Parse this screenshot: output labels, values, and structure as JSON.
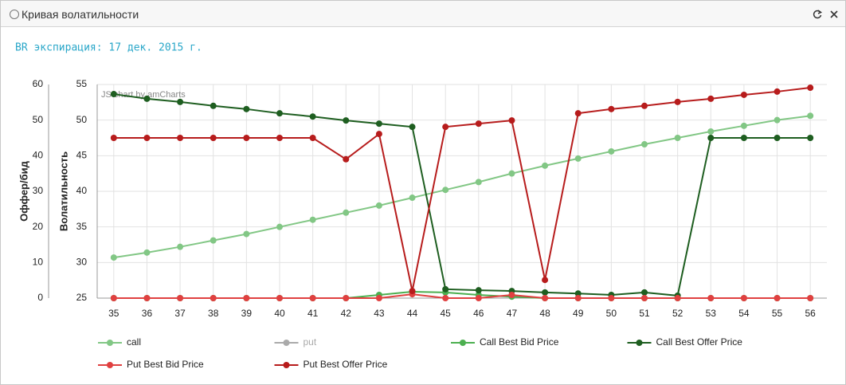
{
  "window_title": "Кривая волатильности",
  "chart_data": {
    "type": "line",
    "subtitle": "BR экспирация: 17 дек. 2015 г.",
    "watermark": "JS chart by amCharts",
    "y_label": "Оффер/бид",
    "y2_label": "Волатильность",
    "categories": [
      "35",
      "36",
      "37",
      "38",
      "39",
      "40",
      "41",
      "42",
      "43",
      "44",
      "45",
      "46",
      "47",
      "48",
      "49",
      "50",
      "51",
      "52",
      "53",
      "54",
      "55",
      "56"
    ],
    "ylim": [
      0,
      60
    ],
    "yticks": [
      0,
      10,
      20,
      30,
      40,
      50,
      60
    ],
    "y2lim": [
      25,
      55
    ],
    "y2ticks": [
      25,
      30,
      35,
      40,
      45,
      50,
      55
    ],
    "grid": true,
    "series": [
      {
        "name": "call",
        "color": "#82c785",
        "axis": "y2",
        "values": [
          30.7,
          31.4,
          32.2,
          33.1,
          34.0,
          35.0,
          36.0,
          37.0,
          38.0,
          39.1,
          40.2,
          41.3,
          42.5,
          43.6,
          44.6,
          45.6,
          46.6,
          47.5,
          48.4,
          49.2,
          50.0,
          50.6
        ]
      },
      {
        "name": "put",
        "color": "#aaaaaa",
        "hidden": true
      },
      {
        "name": "Call Best Bid Price",
        "color": "#4caf50",
        "values": [
          0,
          0,
          0,
          0,
          0,
          0,
          0,
          0,
          0.9,
          1.8,
          1.6,
          0.9,
          0.4,
          0,
          0,
          0,
          0,
          0,
          0,
          0,
          0,
          0
        ]
      },
      {
        "name": "Call Best Offer Price",
        "color": "#1e5e20",
        "values": [
          57.3,
          56.0,
          55.1,
          54.0,
          53.1,
          51.9,
          51.0,
          49.9,
          49.0,
          48.1,
          2.5,
          2.2,
          2.0,
          1.6,
          1.3,
          0.9,
          1.6,
          0.7,
          45.0,
          45.0,
          45.0,
          45.0
        ]
      },
      {
        "name": "Put Best Bid Price",
        "color": "#e04040",
        "values": [
          0,
          0,
          0,
          0,
          0,
          0,
          0,
          0,
          0,
          1.1,
          0,
          0,
          0.9,
          0,
          0,
          0,
          0,
          0,
          0,
          0,
          0,
          0
        ]
      },
      {
        "name": "Put Best Offer Price",
        "color": "#b71c1c",
        "values": [
          45.0,
          45.0,
          45.0,
          45.0,
          45.0,
          45.0,
          45.0,
          39.0,
          46.1,
          2.0,
          48.1,
          49.0,
          49.9,
          5.1,
          51.9,
          53.1,
          54.0,
          55.1,
          56.0,
          57.1,
          58.0,
          59.1
        ]
      }
    ]
  }
}
